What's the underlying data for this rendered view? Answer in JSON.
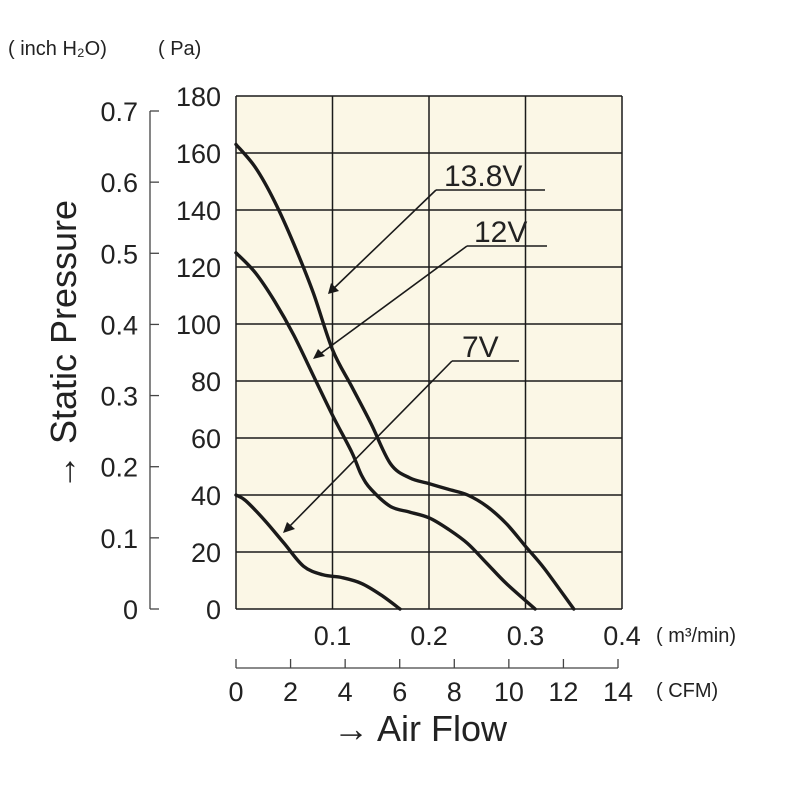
{
  "chart_data": {
    "type": "line",
    "xlabel": "→ Air Flow",
    "ylabel": "→ Static Pressure",
    "x_primary": {
      "unit": "( m³/min)",
      "lim": [
        0,
        0.4
      ],
      "ticks": [
        "0.1",
        "0.2",
        "0.3",
        "0.4"
      ]
    },
    "x_secondary": {
      "unit": "( CFM)",
      "lim": [
        0,
        14
      ],
      "ticks": [
        "0",
        "2",
        "4",
        "6",
        "8",
        "10",
        "12",
        "14"
      ]
    },
    "y_primary": {
      "unit": "( Pa)",
      "lim": [
        0,
        180
      ],
      "ticks": [
        "0",
        "20",
        "40",
        "60",
        "80",
        "100",
        "120",
        "140",
        "160",
        "180"
      ]
    },
    "y_secondary": {
      "unit": "( inch H₂O)",
      "lim": [
        0,
        0.723
      ],
      "ticks": [
        "0",
        "0.1",
        "0.2",
        "0.3",
        "0.4",
        "0.5",
        "0.6",
        "0.7"
      ]
    },
    "grid": true,
    "plot_background": "#fbf7e6",
    "line_color": "#1a1a1a",
    "series": [
      {
        "name": "13.8V",
        "x": [
          0,
          0.02,
          0.04,
          0.06,
          0.08,
          0.1,
          0.12,
          0.14,
          0.16,
          0.18,
          0.2,
          0.22,
          0.24,
          0.26,
          0.28,
          0.3,
          0.32,
          0.35
        ],
        "y": [
          163,
          155,
          143,
          128,
          111,
          91,
          78,
          65,
          51,
          46,
          44,
          42,
          40,
          36,
          30,
          22,
          14,
          0
        ]
      },
      {
        "name": "12V",
        "x": [
          0,
          0.02,
          0.04,
          0.06,
          0.08,
          0.1,
          0.12,
          0.13,
          0.14,
          0.16,
          0.18,
          0.2,
          0.22,
          0.24,
          0.26,
          0.28,
          0.31
        ],
        "y": [
          125,
          118,
          108,
          96,
          82,
          68,
          55,
          47,
          42,
          36,
          34,
          32,
          28,
          23,
          16,
          9,
          0
        ]
      },
      {
        "name": "7V",
        "x": [
          0,
          0.01,
          0.03,
          0.05,
          0.07,
          0.09,
          0.11,
          0.13,
          0.15,
          0.17
        ],
        "y": [
          40,
          38,
          31,
          23,
          15,
          12,
          11,
          9,
          5,
          0
        ]
      }
    ]
  }
}
